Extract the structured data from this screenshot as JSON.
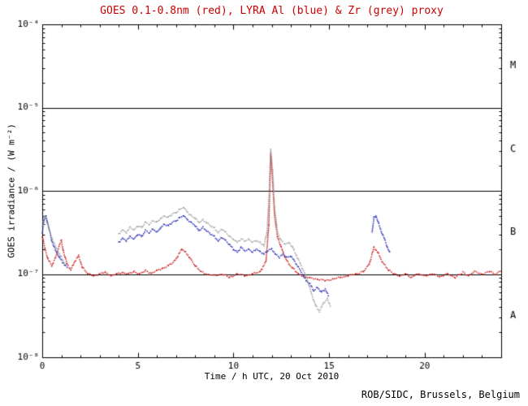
{
  "page": {
    "footer": "ROB/SIDC, Brussels, Belgium"
  },
  "chart_data": {
    "type": "line",
    "title": "GOES 0.1-0.8nm (red), LYRA Al (blue) & Zr (grey) proxy",
    "title_color": "#cc0000",
    "axis_color": "#000000",
    "xlabel": "Time / h UTC, 20 Oct 2010",
    "ylabel": "GOES irradiance / (W m⁻²)",
    "xlim": [
      0,
      24
    ],
    "ylim_log": [
      -8,
      -4
    ],
    "grid": false,
    "legend": "none (colors named in title)",
    "x_ticks": [
      {
        "value": 0,
        "label": "0"
      },
      {
        "value": 5,
        "label": "5"
      },
      {
        "value": 10,
        "label": "10"
      },
      {
        "value": 15,
        "label": "15"
      },
      {
        "value": 20,
        "label": "20"
      }
    ],
    "y_ticks": [
      {
        "log": -8,
        "label": "10⁻⁸"
      },
      {
        "log": -7,
        "label": "10⁻⁷"
      },
      {
        "log": -6,
        "label": "10⁻⁶"
      },
      {
        "log": -5,
        "label": "10⁻⁵"
      },
      {
        "log": -4,
        "label": "10⁻⁴"
      }
    ],
    "minor_x_step": 1,
    "hlines_log": [
      -5,
      -6,
      -7
    ],
    "class_labels": [
      {
        "label": "M",
        "log": -4.5
      },
      {
        "label": "C",
        "log": -5.5
      },
      {
        "label": "B",
        "log": -6.5
      },
      {
        "label": "A",
        "log": -7.5
      }
    ],
    "series": [
      {
        "name": "GOES 0.1-0.8nm",
        "color": "#c81616",
        "segments": [
          [
            [
              0,
              -6.55
            ],
            [
              0.15,
              -6.7
            ],
            [
              0.3,
              -6.82
            ],
            [
              0.5,
              -6.9
            ],
            [
              0.7,
              -6.8
            ],
            [
              0.9,
              -6.65
            ],
            [
              1.0,
              -6.6
            ],
            [
              1.1,
              -6.72
            ],
            [
              1.3,
              -6.88
            ],
            [
              1.5,
              -6.95
            ],
            [
              1.7,
              -6.85
            ],
            [
              1.9,
              -6.78
            ],
            [
              2.1,
              -6.92
            ],
            [
              2.4,
              -7.0
            ],
            [
              2.7,
              -7.02
            ],
            [
              3.0,
              -7.0
            ],
            [
              3.3,
              -6.98
            ],
            [
              3.6,
              -7.02
            ],
            [
              3.9,
              -7.0
            ],
            [
              4.2,
              -6.98
            ],
            [
              4.5,
              -7.0
            ],
            [
              4.8,
              -6.97
            ],
            [
              5.1,
              -7.0
            ],
            [
              5.4,
              -6.96
            ],
            [
              5.7,
              -6.99
            ],
            [
              6.0,
              -6.96
            ],
            [
              6.3,
              -6.93
            ],
            [
              6.6,
              -6.9
            ],
            [
              6.9,
              -6.85
            ],
            [
              7.1,
              -6.78
            ],
            [
              7.3,
              -6.7
            ],
            [
              7.5,
              -6.74
            ],
            [
              7.7,
              -6.8
            ],
            [
              8.0,
              -6.9
            ],
            [
              8.3,
              -6.97
            ],
            [
              8.6,
              -7.0
            ],
            [
              9.0,
              -7.02
            ],
            [
              9.4,
              -7.0
            ],
            [
              9.8,
              -7.04
            ],
            [
              10.2,
              -7.0
            ],
            [
              10.6,
              -7.02
            ],
            [
              11.0,
              -7.0
            ],
            [
              11.4,
              -6.97
            ],
            [
              11.7,
              -6.85
            ],
            [
              11.85,
              -6.4
            ],
            [
              11.95,
              -5.55
            ],
            [
              12.05,
              -5.9
            ],
            [
              12.15,
              -6.3
            ],
            [
              12.3,
              -6.55
            ],
            [
              12.5,
              -6.68
            ],
            [
              12.7,
              -6.8
            ],
            [
              12.9,
              -6.88
            ],
            [
              13.1,
              -6.93
            ],
            [
              13.4,
              -7.0
            ],
            [
              13.7,
              -7.03
            ],
            [
              14.0,
              -7.05
            ],
            [
              14.4,
              -7.06
            ],
            [
              14.8,
              -7.08
            ],
            [
              15.2,
              -7.06
            ],
            [
              15.6,
              -7.04
            ],
            [
              16.0,
              -7.02
            ],
            [
              16.4,
              -7.0
            ],
            [
              16.8,
              -6.97
            ],
            [
              17.1,
              -6.88
            ],
            [
              17.35,
              -6.68
            ],
            [
              17.55,
              -6.74
            ],
            [
              17.8,
              -6.86
            ],
            [
              18.1,
              -6.95
            ],
            [
              18.4,
              -7.0
            ],
            [
              18.7,
              -7.02
            ],
            [
              19.0,
              -7.0
            ],
            [
              19.3,
              -7.04
            ],
            [
              19.6,
              -7.0
            ],
            [
              20.0,
              -7.02
            ],
            [
              20.4,
              -7.0
            ],
            [
              20.8,
              -7.03
            ],
            [
              21.2,
              -7.0
            ],
            [
              21.6,
              -7.04
            ],
            [
              22.0,
              -6.98
            ],
            [
              22.3,
              -7.02
            ],
            [
              22.6,
              -6.97
            ],
            [
              23.0,
              -7.0
            ],
            [
              23.4,
              -6.97
            ],
            [
              23.7,
              -7.0
            ],
            [
              24.0,
              -6.96
            ]
          ]
        ]
      },
      {
        "name": "LYRA Al",
        "color": "#2228b4",
        "segments": [
          [
            [
              0,
              -6.5
            ],
            [
              0.1,
              -6.35
            ],
            [
              0.2,
              -6.3
            ],
            [
              0.35,
              -6.45
            ],
            [
              0.5,
              -6.6
            ],
            [
              0.7,
              -6.72
            ],
            [
              0.9,
              -6.8
            ],
            [
              1.1,
              -6.87
            ],
            [
              1.3,
              -6.92
            ]
          ],
          [
            [
              4.0,
              -6.62
            ],
            [
              4.2,
              -6.57
            ],
            [
              4.4,
              -6.6
            ],
            [
              4.6,
              -6.55
            ],
            [
              4.8,
              -6.58
            ],
            [
              5.0,
              -6.52
            ],
            [
              5.2,
              -6.55
            ],
            [
              5.4,
              -6.48
            ],
            [
              5.6,
              -6.5
            ],
            [
              5.8,
              -6.46
            ],
            [
              6.0,
              -6.5
            ],
            [
              6.2,
              -6.44
            ],
            [
              6.4,
              -6.4
            ],
            [
              6.6,
              -6.42
            ],
            [
              6.8,
              -6.38
            ],
            [
              7.0,
              -6.36
            ],
            [
              7.2,
              -6.32
            ],
            [
              7.4,
              -6.3
            ],
            [
              7.6,
              -6.35
            ],
            [
              7.8,
              -6.38
            ],
            [
              8.0,
              -6.42
            ],
            [
              8.2,
              -6.48
            ],
            [
              8.4,
              -6.44
            ],
            [
              8.6,
              -6.48
            ],
            [
              8.8,
              -6.52
            ],
            [
              9.0,
              -6.55
            ],
            [
              9.2,
              -6.6
            ],
            [
              9.4,
              -6.56
            ],
            [
              9.6,
              -6.6
            ],
            [
              9.8,
              -6.65
            ],
            [
              10.0,
              -6.7
            ],
            [
              10.2,
              -6.74
            ],
            [
              10.4,
              -6.68
            ],
            [
              10.6,
              -6.72
            ],
            [
              10.8,
              -6.7
            ],
            [
              11.0,
              -6.74
            ],
            [
              11.2,
              -6.7
            ],
            [
              11.4,
              -6.73
            ],
            [
              11.6,
              -6.76
            ],
            [
              11.8,
              -6.72
            ],
            [
              12.0,
              -6.7
            ],
            [
              12.2,
              -6.76
            ],
            [
              12.4,
              -6.8
            ],
            [
              12.6,
              -6.76
            ],
            [
              12.8,
              -6.8
            ],
            [
              13.0,
              -6.78
            ],
            [
              13.2,
              -6.85
            ],
            [
              13.4,
              -6.92
            ],
            [
              13.6,
              -7.0
            ],
            [
              13.8,
              -7.08
            ],
            [
              14.0,
              -7.12
            ],
            [
              14.2,
              -7.2
            ],
            [
              14.4,
              -7.16
            ],
            [
              14.6,
              -7.22
            ],
            [
              14.8,
              -7.18
            ],
            [
              15.0,
              -7.28
            ]
          ],
          [
            [
              17.25,
              -6.5
            ],
            [
              17.35,
              -6.32
            ],
            [
              17.45,
              -6.3
            ],
            [
              17.6,
              -6.4
            ],
            [
              17.75,
              -6.5
            ],
            [
              17.9,
              -6.58
            ],
            [
              18.05,
              -6.68
            ],
            [
              18.2,
              -6.76
            ]
          ]
        ]
      },
      {
        "name": "LYRA Zr",
        "color": "#9e9e9e",
        "segments": [
          [
            [
              0,
              -6.42
            ],
            [
              0.12,
              -6.3
            ],
            [
              0.25,
              -6.38
            ],
            [
              0.4,
              -6.5
            ],
            [
              0.6,
              -6.62
            ],
            [
              0.8,
              -6.72
            ],
            [
              1.0,
              -6.8
            ],
            [
              1.2,
              -6.88
            ]
          ],
          [
            [
              4.0,
              -6.52
            ],
            [
              4.2,
              -6.47
            ],
            [
              4.4,
              -6.5
            ],
            [
              4.6,
              -6.44
            ],
            [
              4.8,
              -6.47
            ],
            [
              5.0,
              -6.42
            ],
            [
              5.2,
              -6.44
            ],
            [
              5.4,
              -6.38
            ],
            [
              5.6,
              -6.4
            ],
            [
              5.8,
              -6.36
            ],
            [
              6.0,
              -6.38
            ],
            [
              6.2,
              -6.33
            ],
            [
              6.4,
              -6.3
            ],
            [
              6.6,
              -6.32
            ],
            [
              6.8,
              -6.28
            ],
            [
              7.0,
              -6.26
            ],
            [
              7.2,
              -6.22
            ],
            [
              7.4,
              -6.2
            ],
            [
              7.6,
              -6.26
            ],
            [
              7.8,
              -6.3
            ],
            [
              8.0,
              -6.33
            ],
            [
              8.2,
              -6.38
            ],
            [
              8.4,
              -6.35
            ],
            [
              8.6,
              -6.38
            ],
            [
              8.8,
              -6.42
            ],
            [
              9.0,
              -6.45
            ],
            [
              9.2,
              -6.5
            ],
            [
              9.4,
              -6.46
            ],
            [
              9.6,
              -6.5
            ],
            [
              9.8,
              -6.55
            ],
            [
              10.0,
              -6.58
            ],
            [
              10.2,
              -6.62
            ],
            [
              10.4,
              -6.58
            ],
            [
              10.6,
              -6.6
            ],
            [
              10.8,
              -6.58
            ],
            [
              11.0,
              -6.62
            ],
            [
              11.2,
              -6.6
            ],
            [
              11.4,
              -6.62
            ],
            [
              11.6,
              -6.66
            ],
            [
              11.75,
              -6.5
            ],
            [
              11.85,
              -6.1
            ],
            [
              11.95,
              -5.5
            ],
            [
              12.05,
              -5.75
            ],
            [
              12.15,
              -6.2
            ],
            [
              12.3,
              -6.5
            ],
            [
              12.5,
              -6.6
            ],
            [
              12.7,
              -6.64
            ],
            [
              12.9,
              -6.62
            ],
            [
              13.1,
              -6.68
            ],
            [
              13.3,
              -6.78
            ],
            [
              13.5,
              -6.88
            ],
            [
              13.7,
              -6.98
            ],
            [
              13.9,
              -7.1
            ],
            [
              14.1,
              -7.25
            ],
            [
              14.3,
              -7.38
            ],
            [
              14.5,
              -7.45
            ],
            [
              14.7,
              -7.35
            ],
            [
              14.9,
              -7.3
            ],
            [
              15.1,
              -7.4
            ]
          ]
        ]
      }
    ]
  }
}
